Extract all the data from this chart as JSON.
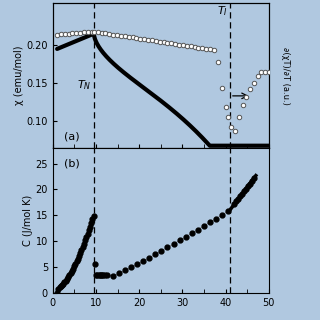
{
  "background_color": "#b0c8e0",
  "T_N": 9.5,
  "T_I": 41.0,
  "xlim": [
    0,
    50
  ],
  "panel_a": {
    "ylabel_left": "χ (emu/mol)",
    "ylabel_right": "∂(χT)/∂T (a.u.)",
    "ylim_left": [
      0.065,
      0.255
    ],
    "yticks_left": [
      0.1,
      0.15,
      0.2
    ],
    "label": "(a)"
  },
  "panel_b": {
    "ylabel": "C (J/mol K)",
    "ylim": [
      0,
      28
    ],
    "yticks": [
      0,
      5,
      10,
      15,
      20,
      25
    ],
    "label": "(b)"
  },
  "xticks": [
    0,
    10,
    20,
    30,
    40,
    50
  ]
}
